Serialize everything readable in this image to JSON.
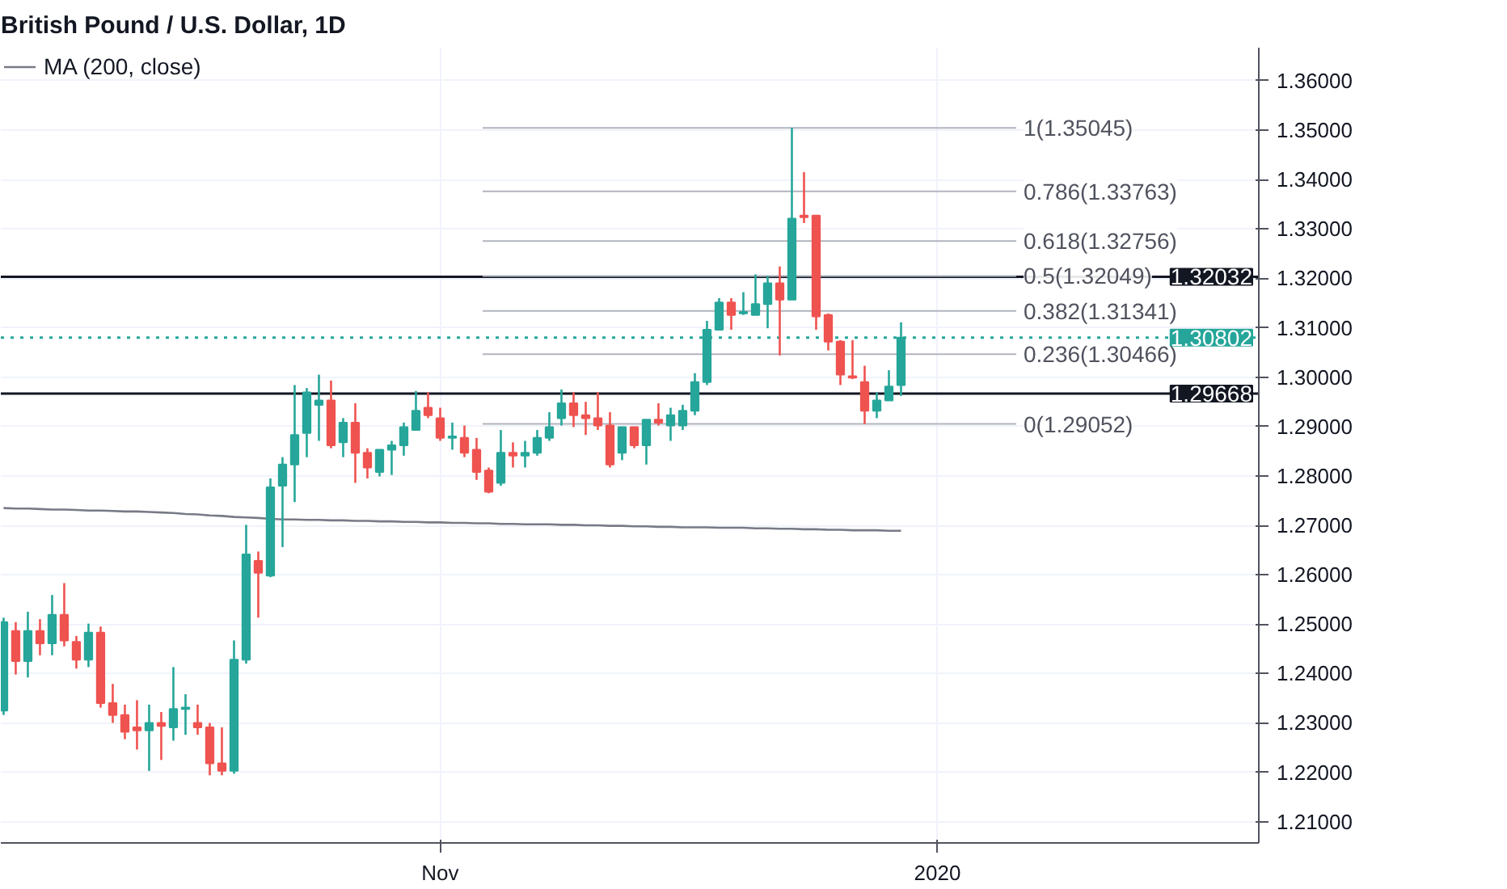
{
  "chart_data": {
    "type": "candlestick",
    "title": "British Pound / U.S. Dollar, 1D",
    "categories": [
      null,
      null,
      null,
      null,
      null,
      null,
      null,
      null,
      null,
      null,
      null,
      null,
      null,
      null,
      null,
      null,
      null,
      null,
      null,
      null,
      null,
      null,
      null,
      null,
      null,
      null,
      null,
      null,
      null,
      null,
      null,
      null,
      null,
      null,
      null,
      null,
      "Nov",
      null,
      null,
      null,
      null,
      null,
      null,
      null,
      null,
      null,
      null,
      null,
      null,
      null,
      null,
      null,
      null,
      null,
      null,
      null,
      null,
      null,
      null,
      null,
      null,
      null,
      null,
      null,
      null,
      null,
      null,
      null,
      null,
      null,
      null,
      null,
      null,
      null,
      null,
      null,
      null,
      "2020",
      null,
      null,
      null,
      null,
      null,
      null,
      null,
      null,
      null,
      null,
      null,
      null,
      null,
      null,
      null,
      null,
      null,
      null,
      null,
      null,
      null,
      null,
      null,
      null,
      null,
      null
    ],
    "ohlc": [
      [
        1.2325,
        1.2513,
        1.2316,
        1.2504
      ],
      [
        1.2486,
        1.2504,
        1.2398,
        1.2425
      ],
      [
        1.2425,
        1.2525,
        1.2392,
        1.2486
      ],
      [
        1.2486,
        1.251,
        1.2437,
        1.2461
      ],
      [
        1.2461,
        1.2559,
        1.2437,
        1.2519
      ],
      [
        1.2519,
        1.2583,
        1.2455,
        1.2467
      ],
      [
        1.2464,
        1.2476,
        1.241,
        1.2428
      ],
      [
        1.2428,
        1.2501,
        1.2413,
        1.2483
      ],
      [
        1.2483,
        1.2495,
        1.2331,
        1.234
      ],
      [
        1.234,
        1.2379,
        1.23,
        1.2316
      ],
      [
        1.2316,
        1.2337,
        1.2267,
        1.2282
      ],
      [
        1.2291,
        1.2346,
        1.2246,
        1.2285
      ],
      [
        1.2285,
        1.2337,
        1.2203,
        1.23
      ],
      [
        1.23,
        1.2322,
        1.2225,
        1.2294
      ],
      [
        1.2291,
        1.2413,
        1.2264,
        1.2328
      ],
      [
        1.2328,
        1.2358,
        1.2276,
        1.2331
      ],
      [
        1.23,
        1.2337,
        1.2276,
        1.2291
      ],
      [
        1.2291,
        1.23,
        1.2194,
        1.2218
      ],
      [
        1.2218,
        1.2291,
        1.2194,
        1.2203
      ],
      [
        1.2203,
        1.2467,
        1.2197,
        1.2428
      ],
      [
        1.2428,
        1.2701,
        1.242,
        1.2641
      ],
      [
        1.2628,
        1.2647,
        1.2513,
        1.2604
      ],
      [
        1.2598,
        1.2795,
        1.2595,
        1.2777
      ],
      [
        1.278,
        1.2838,
        1.2656,
        1.2823
      ],
      [
        1.2823,
        1.2984,
        1.2747,
        1.2883
      ],
      [
        1.2887,
        1.2978,
        1.2838,
        1.2969
      ],
      [
        1.2944,
        1.3005,
        1.2871,
        1.2953
      ],
      [
        1.2953,
        1.2993,
        1.2856,
        1.2862
      ],
      [
        1.2868,
        1.2917,
        1.2838,
        1.2908
      ],
      [
        1.2908,
        1.2947,
        1.2786,
        1.2847
      ],
      [
        1.2847,
        1.2856,
        1.2795,
        1.2817
      ],
      [
        1.2808,
        1.2853,
        1.2799,
        1.2853
      ],
      [
        1.2853,
        1.2871,
        1.2802,
        1.2862
      ],
      [
        1.2862,
        1.2908,
        1.2841,
        1.2899
      ],
      [
        1.2893,
        1.2972,
        1.2893,
        1.2932
      ],
      [
        1.2938,
        1.2969,
        1.2917,
        1.2923
      ],
      [
        1.2917,
        1.2938,
        1.2871,
        1.2877
      ],
      [
        1.2877,
        1.2908,
        1.2853,
        1.288
      ],
      [
        1.2877,
        1.2902,
        1.2838,
        1.2847
      ],
      [
        1.2853,
        1.2877,
        1.2792,
        1.2808
      ],
      [
        1.2811,
        1.2817,
        1.2765,
        1.2768
      ],
      [
        1.2786,
        1.2893,
        1.278,
        1.2847
      ],
      [
        1.2847,
        1.2868,
        1.2817,
        1.2841
      ],
      [
        1.2841,
        1.2871,
        1.2817,
        1.2847
      ],
      [
        1.2847,
        1.2893,
        1.2841,
        1.2877
      ],
      [
        1.2877,
        1.2929,
        1.2871,
        1.2899
      ],
      [
        1.2917,
        1.2975,
        1.2902,
        1.2947
      ],
      [
        1.2947,
        1.2969,
        1.2899,
        1.2923
      ],
      [
        1.2923,
        1.295,
        1.2883,
        1.2917
      ],
      [
        1.2917,
        1.2969,
        1.2893,
        1.2902
      ],
      [
        1.2902,
        1.2929,
        1.2817,
        1.2823
      ],
      [
        1.2847,
        1.2899,
        1.2832,
        1.2899
      ],
      [
        1.2899,
        1.2899,
        1.2856,
        1.2862
      ],
      [
        1.2862,
        1.2914,
        1.2823,
        1.2914
      ],
      [
        1.2914,
        1.2947,
        1.2902,
        1.2908
      ],
      [
        1.2902,
        1.2938,
        1.2871,
        1.2923
      ],
      [
        1.2902,
        1.2944,
        1.2893,
        1.2932
      ],
      [
        1.2932,
        1.3008,
        1.2923,
        1.299
      ],
      [
        1.299,
        1.3114,
        1.2984,
        1.3096
      ],
      [
        1.3096,
        1.316,
        1.3096,
        1.3151
      ],
      [
        1.3151,
        1.316,
        1.3096,
        1.3126
      ],
      [
        1.3129,
        1.3172,
        1.3126,
        1.3132
      ],
      [
        1.3126,
        1.3208,
        1.3126,
        1.3148
      ],
      [
        1.3148,
        1.3205,
        1.3099,
        1.319
      ],
      [
        1.319,
        1.3224,
        1.3044,
        1.3157
      ],
      [
        1.3157,
        1.3505,
        1.3157,
        1.3321
      ],
      [
        1.3327,
        1.3415,
        1.3312,
        1.3324
      ],
      [
        1.3327,
        1.3327,
        1.3096,
        1.3123
      ],
      [
        1.3126,
        1.3129,
        1.3054,
        1.3072
      ],
      [
        1.3072,
        1.3075,
        1.2984,
        1.3005
      ],
      [
        1.3002,
        1.3075,
        1.2996,
        1.2999
      ],
      [
        1.299,
        1.3023,
        1.2905,
        1.2932
      ],
      [
        1.2932,
        1.2969,
        1.2917,
        1.2953
      ],
      [
        1.2953,
        1.3014,
        1.2953,
        1.2981
      ],
      [
        1.2984,
        1.3111,
        1.2962,
        1.308
      ],
      null,
      null,
      null,
      null,
      null,
      null,
      null,
      null,
      null,
      null,
      null,
      null,
      null,
      null,
      null,
      null,
      null,
      null,
      null,
      null,
      null,
      null,
      null,
      null,
      null,
      null,
      null,
      null,
      null
    ],
    "colors": [
      "#26a69a",
      "#ef5350",
      "#26a69a",
      "#ef5350",
      "#26a69a",
      "#ef5350",
      "#ef5350",
      "#26a69a",
      "#ef5350",
      "#ef5350",
      "#ef5350",
      "#ef5350",
      "#26a69a",
      "#ef5350",
      "#26a69a",
      "#26a69a",
      "#ef5350",
      "#ef5350",
      "#ef5350",
      "#26a69a",
      "#26a69a",
      "#ef5350",
      "#26a69a",
      "#26a69a",
      "#26a69a",
      "#26a69a",
      "#26a69a",
      "#ef5350",
      "#26a69a",
      "#ef5350",
      "#ef5350",
      "#26a69a",
      "#26a69a",
      "#26a69a",
      "#26a69a",
      "#ef5350",
      "#ef5350",
      "#26a69a",
      "#ef5350",
      "#ef5350",
      "#ef5350",
      "#26a69a",
      "#ef5350",
      "#26a69a",
      "#26a69a",
      "#26a69a",
      "#26a69a",
      "#ef5350",
      "#ef5350",
      "#ef5350",
      "#ef5350",
      "#26a69a",
      "#ef5350",
      "#26a69a",
      "#ef5350",
      "#26a69a",
      "#26a69a",
      "#26a69a",
      "#26a69a",
      "#26a69a",
      "#ef5350",
      "#26a69a",
      "#26a69a",
      "#26a69a",
      "#ef5350",
      "#26a69a",
      "#ef5350",
      "#ef5350",
      "#ef5350",
      "#ef5350",
      "#ef5350",
      "#ef5350",
      "#26a69a",
      "#26a69a",
      "#26a69a",
      null,
      null,
      null,
      null,
      null,
      null,
      null,
      null,
      null,
      null,
      null,
      null,
      null,
      null,
      null,
      null,
      null,
      null,
      null,
      null,
      null,
      null,
      null,
      null,
      null,
      null,
      null,
      null,
      null
    ],
    "series": [
      {
        "name": "MA (200, close)",
        "type": "line",
        "color": "#787b86",
        "values": [
          1.2735,
          1.2734,
          1.2734,
          1.2733,
          1.2732,
          1.2732,
          1.2731,
          1.273,
          1.273,
          1.2729,
          1.2728,
          1.2728,
          1.2727,
          1.2726,
          1.2725,
          1.2723,
          1.2722,
          1.272,
          1.2719,
          1.2717,
          1.2716,
          1.2715,
          1.2713,
          1.2712,
          1.2712,
          1.2711,
          1.2711,
          1.271,
          1.271,
          1.2709,
          1.2709,
          1.2708,
          1.2708,
          1.2707,
          1.2707,
          1.2706,
          1.2706,
          1.2705,
          1.2705,
          1.2704,
          1.2704,
          1.2703,
          1.2703,
          1.2702,
          1.2702,
          1.2702,
          1.2701,
          1.2701,
          1.27,
          1.27,
          1.2699,
          1.2699,
          1.2698,
          1.2698,
          1.2697,
          1.2697,
          1.2696,
          1.2696,
          1.2696,
          1.2695,
          1.2695,
          1.2695,
          1.2694,
          1.2694,
          1.2693,
          1.2693,
          1.2692,
          1.2692,
          1.2691,
          1.2691,
          1.269,
          1.269,
          1.269,
          1.2689,
          1.2689,
          null,
          null,
          null,
          null,
          null,
          null,
          null,
          null,
          null,
          null,
          null,
          null,
          null,
          null,
          null,
          null,
          null,
          null,
          null,
          null,
          null,
          null,
          null,
          null,
          null,
          null,
          null,
          null,
          null
        ]
      }
    ],
    "ylim": [
      1.2057,
      1.3667
    ],
    "yticks": [
      {
        "value": 1.21,
        "label": "1.21000"
      },
      {
        "value": 1.22,
        "label": "1.22000"
      },
      {
        "value": 1.23,
        "label": "1.23000"
      },
      {
        "value": 1.24,
        "label": "1.24000"
      },
      {
        "value": 1.25,
        "label": "1.25000"
      },
      {
        "value": 1.26,
        "label": "1.26000"
      },
      {
        "value": 1.27,
        "label": "1.27000"
      },
      {
        "value": 1.28,
        "label": "1.28000"
      },
      {
        "value": 1.29,
        "label": "1.29000"
      },
      {
        "value": 1.3,
        "label": "1.30000"
      },
      {
        "value": 1.31,
        "label": "1.31000"
      },
      {
        "value": 1.32,
        "label": "1.32000"
      },
      {
        "value": 1.33,
        "label": "1.33000"
      },
      {
        "value": 1.34,
        "label": "1.34000"
      },
      {
        "value": 1.35,
        "label": "1.35000"
      },
      {
        "value": 1.36,
        "label": "1.36000"
      }
    ],
    "ref_lines": [
      {
        "axis": "y",
        "value": 1.35045,
        "label": "1(1.35045)",
        "color": "#b2b5be"
      },
      {
        "axis": "y",
        "value": 1.33763,
        "label": "0.786(1.33763)",
        "color": "#b2b5be"
      },
      {
        "axis": "y",
        "value": 1.32756,
        "label": "0.618(1.32756)",
        "color": "#b2b5be"
      },
      {
        "axis": "y",
        "value": 1.32049,
        "label": "0.5(1.32049)",
        "color": "#b2b5be"
      },
      {
        "axis": "y",
        "value": 1.31341,
        "label": "0.382(1.31341)",
        "color": "#b2b5be"
      },
      {
        "axis": "y",
        "value": 1.30466,
        "label": "0.236(1.30466)",
        "color": "#b2b5be"
      },
      {
        "axis": "y",
        "value": 1.29052,
        "label": "0(1.29052)",
        "color": "#b2b5be"
      },
      {
        "axis": "y",
        "value": 1.32032,
        "label": "1.32032",
        "color": "#131722"
      },
      {
        "axis": "y",
        "value": 1.29668,
        "label": "1.29668",
        "color": "#131722"
      },
      {
        "axis": "y",
        "value": 1.30802,
        "label": "1.30802",
        "color": "#26a69a",
        "line_style": "dotted"
      }
    ],
    "grid": true,
    "legend": "top left"
  }
}
